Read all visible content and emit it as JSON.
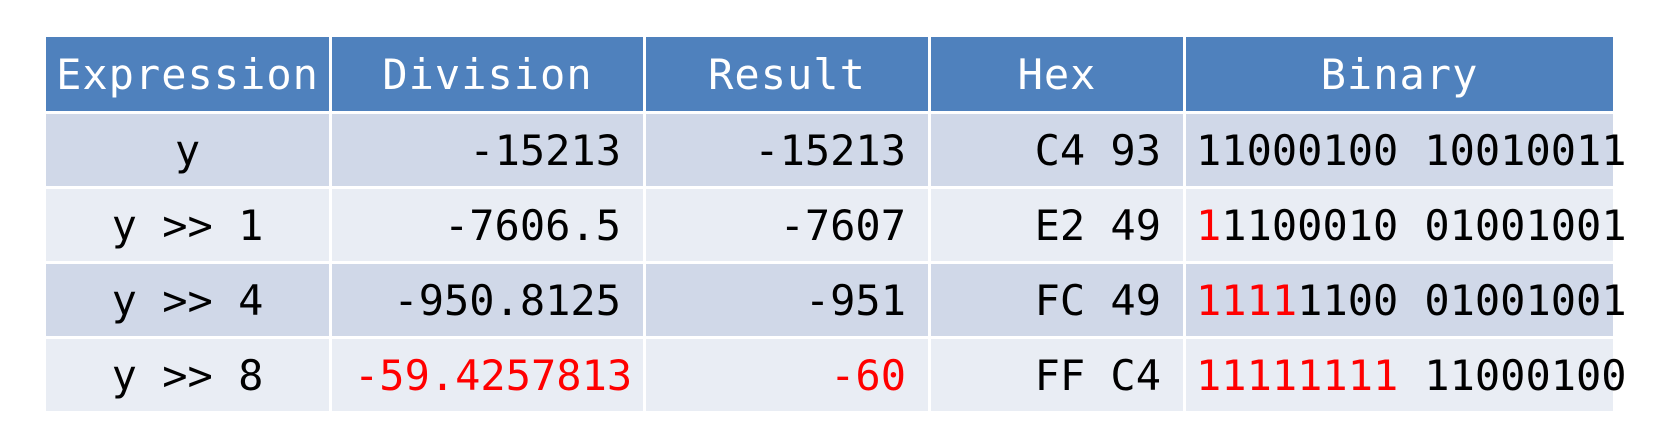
{
  "table": {
    "headers": [
      "Expression",
      "Division",
      "Result",
      "Hex",
      "Binary"
    ],
    "rows": [
      {
        "expression": "y",
        "division": "-15213",
        "result": "-15213",
        "hex": "C4 93",
        "binary_high_red": "",
        "binary_high_rest": "11000100",
        "binary_low": "10010011"
      },
      {
        "expression": "y >> 1",
        "division": "-7606.5",
        "result": "-7607",
        "hex": "E2 49",
        "binary_high_red": "1",
        "binary_high_rest": "1100010",
        "binary_low": "01001001"
      },
      {
        "expression": "y >> 4",
        "division": "-950.8125",
        "result": "-951",
        "hex": "FC 49",
        "binary_high_red": "1111",
        "binary_high_rest": "1100",
        "binary_low": "01001001"
      },
      {
        "expression": "y >> 8",
        "division": "-59.4257813",
        "result": "-60",
        "hex": "FF C4",
        "binary_high_red": "11111111",
        "binary_high_rest": "",
        "binary_low": "11000100"
      }
    ]
  },
  "colors": {
    "header_bg": "#4f81bd",
    "row_dark": "#d0d8e8",
    "row_light": "#e9edf4",
    "highlight": "#ff0000"
  }
}
